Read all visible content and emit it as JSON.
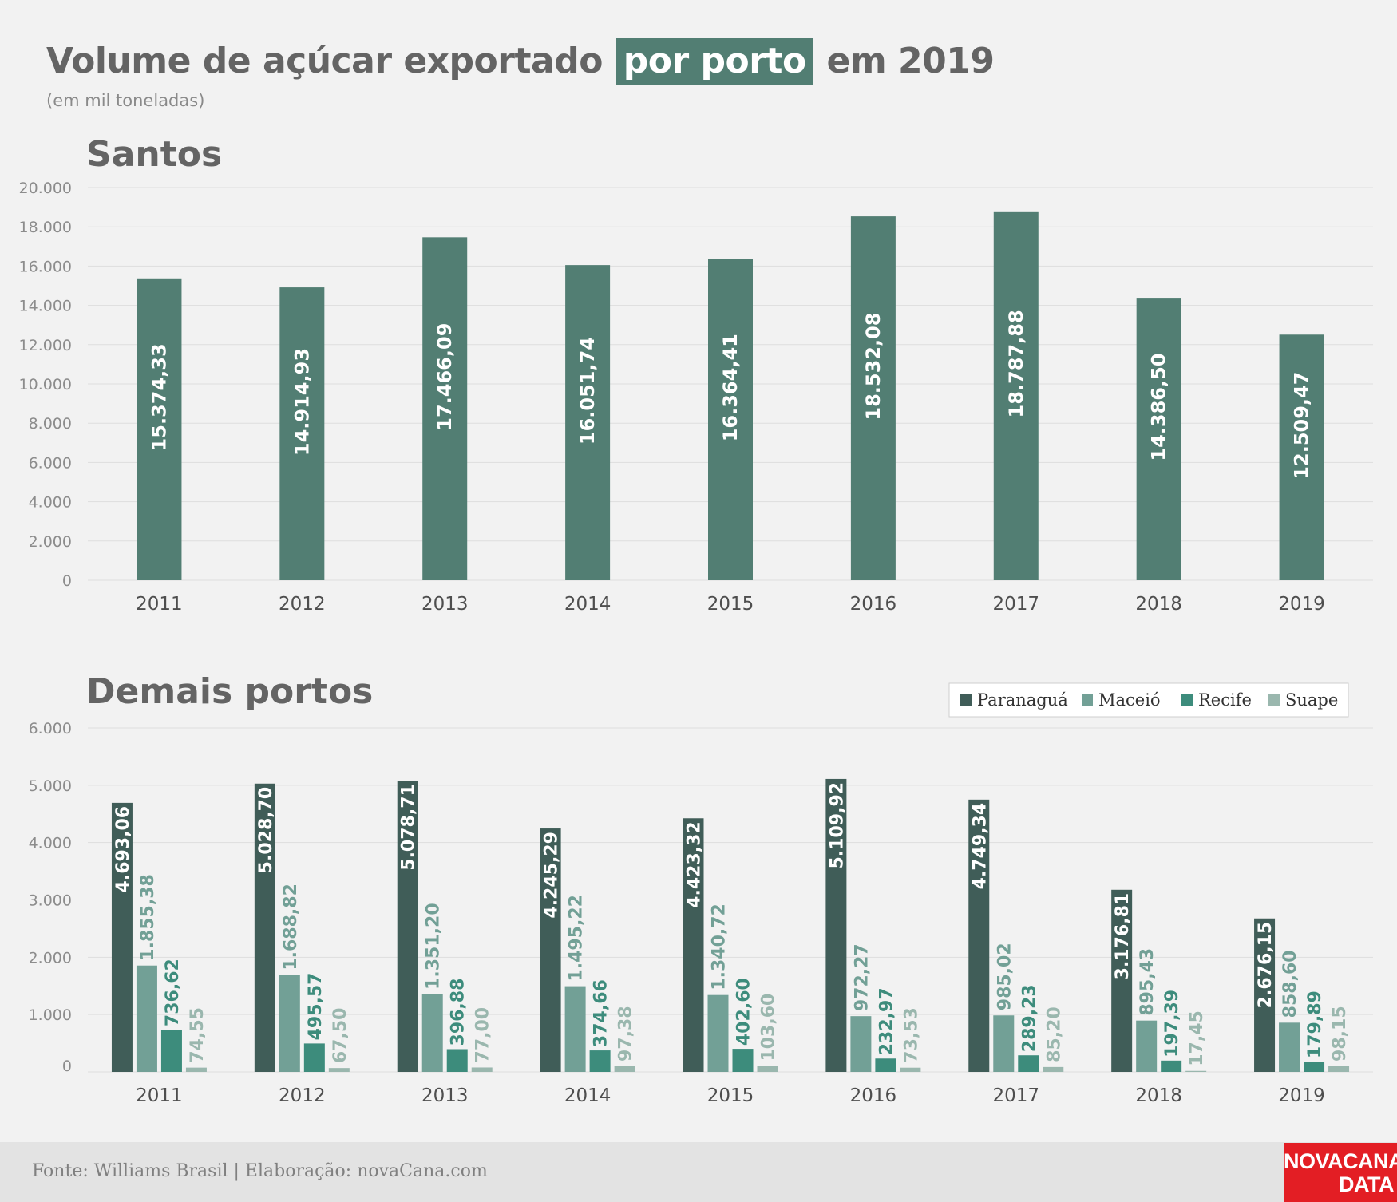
{
  "header": {
    "title_pre": "Volume de açúcar exportado",
    "title_hl": "por porto",
    "title_post": "em 2019",
    "subtitle": "(em mil toneladas)"
  },
  "colors": {
    "santos": "#527e73",
    "paranagua": "#405d58",
    "maceio": "#72a096",
    "recife": "#3d8c7c",
    "suape": "#9ab7ae",
    "axis_text": "#8c8c8c",
    "title_text": "#646464"
  },
  "chart_data": [
    {
      "type": "bar",
      "title": "Santos",
      "categories": [
        "2011",
        "2012",
        "2013",
        "2014",
        "2015",
        "2016",
        "2017",
        "2018",
        "2019"
      ],
      "values": [
        15374.33,
        14914.93,
        17466.09,
        16051.74,
        16364.41,
        18532.08,
        18787.88,
        14386.5,
        12509.47
      ],
      "labels": [
        "15.374,33",
        "14.914,93",
        "17.466,09",
        "16.051,74",
        "16.364,41",
        "18.532,08",
        "18.787,88",
        "14.386,50",
        "12.509,47"
      ],
      "ylim": [
        0,
        20000
      ],
      "yticks": [
        0,
        2000,
        4000,
        6000,
        8000,
        10000,
        12000,
        14000,
        16000,
        18000,
        20000
      ],
      "ytick_labels": [
        "0",
        "2.000",
        "4.000",
        "6.000",
        "8.000",
        "10.000",
        "12.000",
        "14.000",
        "16.000",
        "18.000",
        "20.000"
      ],
      "grid": true
    },
    {
      "type": "bar",
      "title": "Demais portos",
      "categories": [
        "2011",
        "2012",
        "2013",
        "2014",
        "2015",
        "2016",
        "2017",
        "2018",
        "2019"
      ],
      "series": [
        {
          "name": "Paranaguá",
          "values": [
            4693.06,
            5028.7,
            5078.71,
            4245.29,
            4423.32,
            5109.92,
            4749.34,
            3176.81,
            2676.15
          ],
          "labels": [
            "4.693,06",
            "5.028,70",
            "5.078,71",
            "4.245,29",
            "4.423,32",
            "5.109,92",
            "4.749,34",
            "3.176,81",
            "2.676,15"
          ]
        },
        {
          "name": "Maceió",
          "values": [
            1855.38,
            1688.82,
            1351.2,
            1495.22,
            1340.72,
            972.27,
            985.02,
            895.43,
            858.6
          ],
          "labels": [
            "1.855,38",
            "1.688,82",
            "1.351,20",
            "1.495,22",
            "1.340,72",
            "972,27",
            "985,02",
            "895,43",
            "858,60"
          ]
        },
        {
          "name": "Recife",
          "values": [
            736.62,
            495.57,
            396.88,
            374.66,
            402.6,
            232.97,
            289.23,
            197.39,
            179.89
          ],
          "labels": [
            "736,62",
            "495,57",
            "396,88",
            "374,66",
            "402,60",
            "232,97",
            "289,23",
            "197,39",
            "179,89"
          ]
        },
        {
          "name": "Suape",
          "values": [
            74.55,
            67.5,
            77.0,
            97.38,
            103.6,
            73.53,
            85.2,
            17.45,
            98.15
          ],
          "labels": [
            "74,55",
            "67,50",
            "77,00",
            "97,38",
            "103,60",
            "73,53",
            "85,20",
            "17,45",
            "98,15"
          ]
        }
      ],
      "ylim": [
        0,
        6000
      ],
      "yticks": [
        0,
        1000,
        2000,
        3000,
        4000,
        5000,
        6000
      ],
      "ytick_labels": [
        "0",
        "1.000",
        "2.000",
        "3.000",
        "4.000",
        "5.000",
        "6.000"
      ],
      "legend_position": "top-right",
      "grid": true
    }
  ],
  "footer": {
    "source": "Fonte: Williams Brasil | Elaboração: novaCana.com",
    "logo_line1": "NOVACANA",
    "logo_line2": "DATA"
  }
}
